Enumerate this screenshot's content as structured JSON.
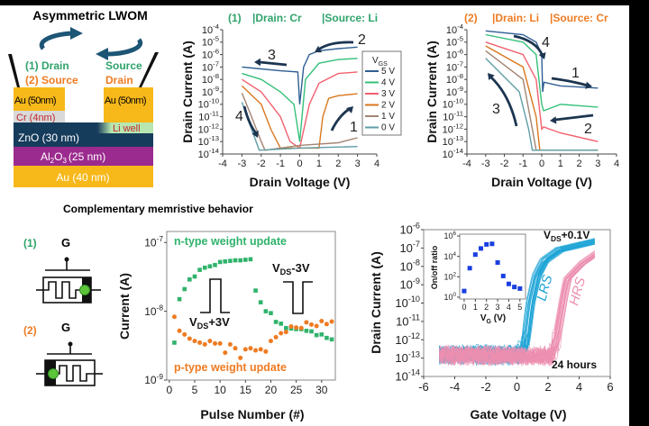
{
  "schematic": {
    "title": "Asymmetric LWOM",
    "left_labels": [
      "(1) Drain",
      "(2) Source"
    ],
    "right_labels": [
      "Source",
      "Drain"
    ],
    "layers": {
      "au_left": "Au (50nm)",
      "au_right": "Au (50nm)",
      "cr": "Cr (4nm)",
      "li": "Li well",
      "zno": "ZnO (30 nm)",
      "al2o3": {
        "a": "Al",
        "s1": "2",
        "b": "O",
        "s2": "3",
        "c": "(25 nm)"
      },
      "au_bottom": "Au (40 nm)"
    },
    "colors": {
      "green": "#2fa36b",
      "orange": "#ef7b22",
      "au": "#f7b81a",
      "cr": "#d9d9d9",
      "zno": "#163c5c",
      "al2o3": "#9b2b8e",
      "li": "#b8e6b0",
      "cr_text": "#c0282d"
    }
  },
  "section_title": "Complementary memristive behavior",
  "device_symbols": [
    {
      "label": "(1)",
      "gate": "G",
      "electrode_side": "right"
    },
    {
      "label": "(2)",
      "gate": "G",
      "electrode_side": "left"
    }
  ],
  "chart_data": [
    {
      "type": "line",
      "title_parts": [
        "(1)",
        "|Drain: Cr",
        "|Source: Li"
      ],
      "title_color": "#2fa36b",
      "xlabel": "Drain Voltage (V)",
      "ylabel": "Drain Current (A)",
      "xlim": [
        -4,
        4
      ],
      "ylim": [
        1e-14,
        0.0001
      ],
      "yscale": "log",
      "xticks": [
        -4,
        -3,
        -2,
        -1,
        0,
        1,
        2,
        3,
        4
      ],
      "yticks": [
        1e-14,
        1e-13,
        1e-12,
        1e-11,
        1e-10,
        1e-09,
        1e-08,
        1e-07,
        1e-06,
        1e-05,
        0.0001
      ],
      "legend": {
        "title": "V",
        "title_sub": "GS",
        "placement": "right"
      },
      "series": [
        {
          "name": "5 V",
          "color": "#2f5f93",
          "points": [
            [
              -3,
              1e-07
            ],
            [
              -2,
              7e-08
            ],
            [
              -1,
              5e-08
            ],
            [
              -0.1,
              4e-08
            ],
            [
              0,
              1e-10
            ],
            [
              0.2,
              1e-07
            ],
            [
              0.5,
              1e-06
            ],
            [
              1,
              2e-06
            ],
            [
              2,
              3e-06
            ],
            [
              3,
              4e-06
            ]
          ]
        },
        {
          "name": "4 V",
          "color": "#35c07a",
          "points": [
            [
              -3,
              3e-08
            ],
            [
              -2,
              1e-08
            ],
            [
              -1,
              1e-09
            ],
            [
              -0.3,
              1e-10
            ],
            [
              0,
              1e-13
            ],
            [
              0.3,
              1e-08
            ],
            [
              1,
              2e-07
            ],
            [
              2,
              4e-07
            ],
            [
              3,
              5e-07
            ]
          ]
        },
        {
          "name": "3 V",
          "color": "#f2606e",
          "points": [
            [
              -3,
              1e-08
            ],
            [
              -2,
              1e-09
            ],
            [
              -1,
              1e-11
            ],
            [
              -0.5,
              1e-13
            ],
            [
              0,
              3e-14
            ],
            [
              0.5,
              1e-10
            ],
            [
              1,
              5e-09
            ],
            [
              2,
              3e-08
            ],
            [
              3,
              4e-08
            ]
          ]
        },
        {
          "name": "2 V",
          "color": "#d9771f",
          "points": [
            [
              -3,
              3e-09
            ],
            [
              -2,
              1e-10
            ],
            [
              -1.5,
              1e-12
            ],
            [
              -1,
              3e-14
            ],
            [
              0,
              3e-14
            ],
            [
              1,
              3e-14
            ],
            [
              1.2,
              1e-11
            ],
            [
              1.5,
              3e-10
            ],
            [
              2,
              5e-10
            ],
            [
              3,
              7e-10
            ]
          ]
        },
        {
          "name": "1 V",
          "color": "#a38573",
          "points": [
            [
              -3,
              8e-10
            ],
            [
              -2.5,
              1e-11
            ],
            [
              -2,
              1e-13
            ],
            [
              -1.8,
              2e-14
            ],
            [
              0,
              5e-14
            ],
            [
              2,
              8e-14
            ],
            [
              3,
              2e-13
            ]
          ]
        },
        {
          "name": "0 V",
          "color": "#5f9ea6",
          "points": [
            [
              -3,
              1.5e-10
            ],
            [
              -2.5,
              1e-12
            ],
            [
              -2.1,
              2e-14
            ],
            [
              0,
              3e-14
            ],
            [
              3,
              4e-14
            ]
          ]
        }
      ],
      "annotations": [
        "1",
        "2",
        "3",
        "4"
      ]
    },
    {
      "type": "line",
      "title_parts": [
        "(2)",
        "|Drain: Li",
        "|Source: Cr"
      ],
      "title_color": "#ef7b22",
      "xlabel": "Drain Voltage (V)",
      "ylabel": "Drain Current (A)",
      "xlim": [
        -4,
        4
      ],
      "ylim": [
        1e-14,
        0.0001
      ],
      "yscale": "log",
      "xticks": [
        -4,
        -3,
        -2,
        -1,
        0,
        1,
        2,
        3,
        4
      ],
      "yticks": [
        1e-14,
        1e-13,
        1e-12,
        1e-11,
        1e-10,
        1e-09,
        1e-08,
        1e-07,
        1e-06,
        1e-05,
        0.0001
      ],
      "series": [
        {
          "name": "5 V",
          "color": "#2f5f93",
          "points": [
            [
              -3,
              8e-05
            ],
            [
              -1,
              4e-05
            ],
            [
              -0.3,
              1e-05
            ],
            [
              0,
              1e-06
            ],
            [
              0.05,
              1e-09
            ],
            [
              0.12,
              6e-09
            ],
            [
              1,
              3e-09
            ],
            [
              3,
              2e-09
            ]
          ]
        },
        {
          "name": "4 V",
          "color": "#35c07a",
          "points": [
            [
              -3,
              4e-05
            ],
            [
              -1,
              1e-05
            ],
            [
              -0.3,
              1e-06
            ],
            [
              0,
              1e-10
            ],
            [
              0.1,
              3e-11
            ],
            [
              1,
              1e-10
            ],
            [
              3,
              6e-11
            ]
          ]
        },
        {
          "name": "3 V",
          "color": "#f2606e",
          "points": [
            [
              -3,
              1e-05
            ],
            [
              -1,
              1e-06
            ],
            [
              -0.3,
              1e-08
            ],
            [
              0,
              1e-12
            ],
            [
              0.1,
              1.5e-12
            ],
            [
              1,
              5e-13
            ],
            [
              3,
              1e-13
            ]
          ]
        },
        {
          "name": "2 V",
          "color": "#d9771f",
          "points": [
            [
              -3,
              5e-06
            ],
            [
              -1,
              1e-07
            ],
            [
              -0.3,
              1e-11
            ],
            [
              -0.1,
              2e-14
            ],
            [
              3,
              2e-14
            ]
          ]
        },
        {
          "name": "1 V",
          "color": "#a38573",
          "points": [
            [
              -3,
              2e-06
            ],
            [
              -1,
              1e-08
            ],
            [
              -0.5,
              1e-12
            ],
            [
              -0.3,
              2e-14
            ],
            [
              3,
              2e-14
            ]
          ]
        },
        {
          "name": "0 V",
          "color": "#5f9ea6",
          "points": [
            [
              -3,
              5e-07
            ],
            [
              -1.2,
              1e-09
            ],
            [
              -0.7,
              1e-12
            ],
            [
              -0.5,
              2e-14
            ],
            [
              3,
              2e-14
            ]
          ]
        }
      ],
      "annotations": [
        "1",
        "2",
        "3",
        "4"
      ]
    },
    {
      "type": "scatter",
      "xlabel": "Pulse Number (#)",
      "ylabel": "Current (A)",
      "xlim": [
        0,
        32
      ],
      "ylim": [
        1e-09,
        1e-07
      ],
      "yscale": "log",
      "xticks": [
        0,
        5,
        10,
        15,
        20,
        25,
        30
      ],
      "yticks": [
        1e-09,
        1e-08,
        1e-07
      ],
      "series": [
        {
          "name": "n-type weight update",
          "color": "#2fb36b",
          "marker": "square",
          "x": [
            1,
            2,
            3,
            4,
            5,
            6,
            7,
            8,
            9,
            10,
            11,
            12,
            13,
            14,
            15,
            16,
            17,
            18,
            19,
            20,
            21,
            22,
            23,
            24,
            25,
            26,
            27,
            28,
            29,
            30,
            31,
            32
          ],
          "y": [
            3.5e-09,
            1.5e-08,
            2.1e-08,
            2.9e-08,
            3.2e-08,
            4e-08,
            4.3e-08,
            4.5e-08,
            4.7e-08,
            5.2e-08,
            5.3e-08,
            5.4e-08,
            5.5e-08,
            5.5e-08,
            5.6e-08,
            5.7e-08,
            2e-08,
            1.35e-08,
            1e-08,
            9.4e-09,
            7e-09,
            6.6e-09,
            5.7e-09,
            5.6e-09,
            5.5e-09,
            5.5e-09,
            5.2e-09,
            5.1e-09,
            4.5e-09,
            4.6e-09,
            4.1e-09,
            3.9e-09
          ]
        },
        {
          "name": "p-type weight update",
          "color": "#ef7b22",
          "marker": "circle",
          "x": [
            1,
            2,
            3,
            4,
            5,
            6,
            7,
            8,
            9,
            10,
            11,
            12,
            13,
            14,
            15,
            16,
            17,
            18,
            19,
            20,
            21,
            22,
            23,
            24,
            25,
            26,
            27,
            28,
            29,
            30,
            31,
            32
          ],
          "y": [
            8.3e-09,
            5.2e-09,
            4.6e-09,
            4e-09,
            3.7e-09,
            3.5e-09,
            3.3e-09,
            3.7e-09,
            3.4e-09,
            3.4e-09,
            2.5e-09,
            3.3e-09,
            2.9e-09,
            2.1e-09,
            2.8e-09,
            2.9e-09,
            2.7e-09,
            2.8e-09,
            2.6e-09,
            3.7e-09,
            4.2e-09,
            4.8e-09,
            5e-09,
            6e-09,
            5.8e-09,
            5.7e-09,
            6.9e-09,
            6.4e-09,
            6.1e-09,
            7.2e-09,
            6.5e-09,
            7.1e-09
          ]
        }
      ],
      "pulse_labels": [
        {
          "v": "V",
          "sub": "DS",
          "rest": "+3V",
          "direction": "up"
        },
        {
          "v": "V",
          "sub": "DS",
          "rest": "-3V",
          "direction": "down"
        }
      ]
    },
    {
      "type": "line",
      "xlabel": "Gate Voltage (V)",
      "ylabel": "Drain Current (A)",
      "xlim": [
        -6,
        6
      ],
      "ylim": [
        1e-14,
        1e-06
      ],
      "yscale": "log",
      "xticks": [
        -6,
        -4,
        -2,
        0,
        2,
        4,
        6
      ],
      "yticks": [
        1e-14,
        1e-13,
        1e-12,
        1e-11,
        1e-10,
        1e-09,
        1e-08,
        1e-07,
        1e-06
      ],
      "series": [
        {
          "name": "LRS",
          "color": "#1ba3d6",
          "points": [
            [
              -5,
              1.5e-13
            ],
            [
              -2,
              1.5e-13
            ],
            [
              0,
              1.5e-13
            ],
            [
              0.3,
              1e-12
            ],
            [
              0.6,
              1e-10
            ],
            [
              1,
              3e-09
            ],
            [
              1.5,
              2e-08
            ],
            [
              2.5,
              8e-08
            ],
            [
              5,
              2.5e-07
            ]
          ]
        },
        {
          "name": "HRS",
          "color": "#ec8fb0",
          "points": [
            [
              -5,
              1.5e-13
            ],
            [
              2,
              1.3e-13
            ],
            [
              2.3,
              1e-12
            ],
            [
              2.7,
              1e-10
            ],
            [
              3,
              2e-09
            ],
            [
              4,
              1.5e-08
            ],
            [
              5,
              6e-08
            ]
          ]
        }
      ],
      "annotations": {
        "condition": {
          "v": "V",
          "sub": "DS",
          "rest": "+0.1V"
        },
        "duration": "24 hours"
      }
    },
    {
      "type": "scatter",
      "inset_of": 3,
      "xlabel": {
        "v": "V",
        "sub": "G",
        "rest": " (V)"
      },
      "ylabel": "On/off ratio",
      "xlim": [
        0,
        5
      ],
      "ylim": [
        1,
        1000000.0
      ],
      "yscale": "log",
      "xticks": [
        0,
        1,
        2,
        3,
        4,
        5
      ],
      "yticks": [
        1,
        100,
        10000,
        1000000
      ],
      "series": [
        {
          "color": "#1a3fe0",
          "marker": "square",
          "x": [
            0,
            0.5,
            1,
            1.5,
            2,
            2.5,
            3,
            3.5,
            4,
            4.5,
            5
          ],
          "y": [
            4,
            700,
            15000,
            60000,
            150000,
            170000,
            2500,
            120,
            20,
            10,
            7
          ]
        }
      ]
    }
  ]
}
